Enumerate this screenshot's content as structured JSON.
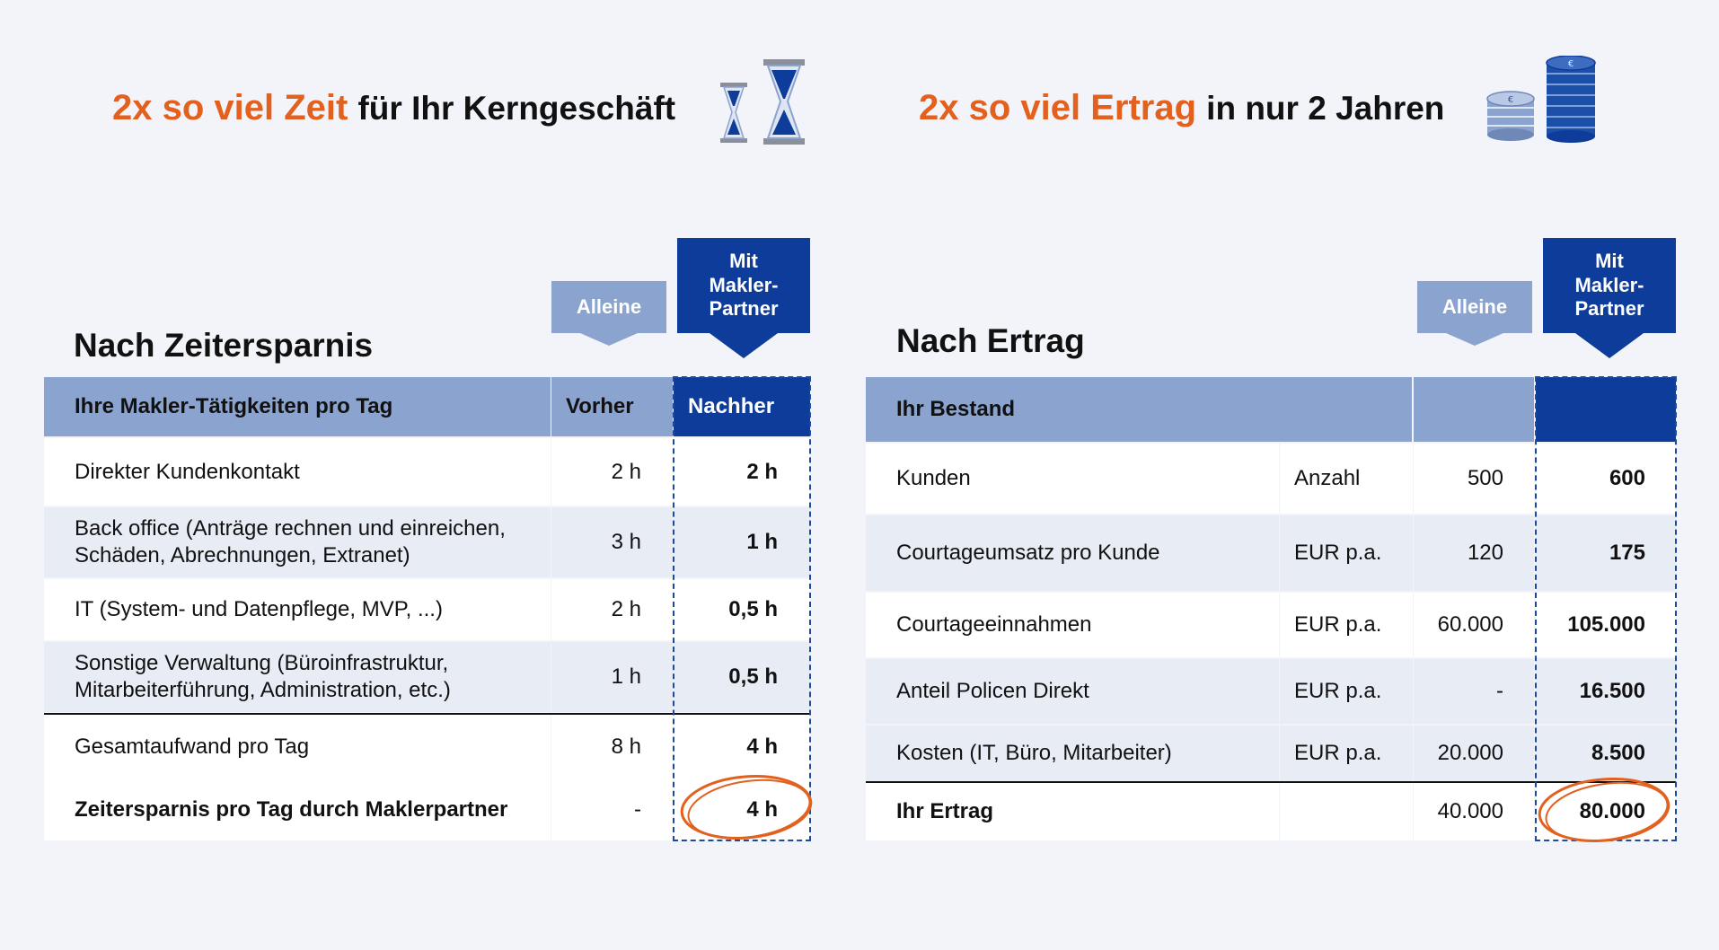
{
  "left": {
    "headline_accent": "2x so viel Zeit",
    "headline_rest": "für Ihr Kerngeschäft",
    "icon": "hourglass-icon",
    "section_title": "Nach Zeitersparnis",
    "tag_alone": "Alleine",
    "tag_partner": "Mit Makler-Partner",
    "table": {
      "headers": [
        "Ihre Makler-Tätigkeiten pro Tag",
        "Vorher",
        "Nachher"
      ],
      "rows": [
        {
          "label": "Direkter Kundenkontakt",
          "before": "2 h",
          "after": "2 h"
        },
        {
          "label": "Back office (Anträge rechnen und einreichen, Schäden, Abrechnungen, Extranet)",
          "before": "3 h",
          "after": "1 h"
        },
        {
          "label": "IT (System- und Datenpflege, MVP, ...)",
          "before": "2 h",
          "after": "0,5 h"
        },
        {
          "label": "Sonstige Verwaltung (Büroinfrastruktur, Mitarbeiterführung, Administration, etc.)",
          "before": "1 h",
          "after": "0,5 h"
        }
      ],
      "total": {
        "label": "Gesamtaufwand pro Tag",
        "before": "8 h",
        "after": "4 h"
      },
      "savings": {
        "label": "Zeitersparnis pro Tag durch Maklerpartner",
        "before": "-",
        "after": "4 h"
      }
    }
  },
  "right": {
    "headline_accent": "2x so viel Ertrag",
    "headline_rest": "in nur 2 Jahren",
    "icon": "coins-icon",
    "section_title": "Nach Ertrag",
    "tag_alone": "Alleine",
    "tag_partner": "Mit Makler-Partner",
    "table": {
      "header": "Ihr Bestand",
      "rows": [
        {
          "label": "Kunden",
          "unit": "Anzahl",
          "before": "500",
          "after": "600"
        },
        {
          "label": "Courtageumsatz pro Kunde",
          "unit": "EUR p.a.",
          "before": "120",
          "after": "175"
        },
        {
          "label": "Courtageeinnahmen",
          "unit": "EUR p.a.",
          "before": "60.000",
          "after": "105.000"
        },
        {
          "label": "Anteil Policen Direkt",
          "unit": "EUR p.a.",
          "before": "-",
          "after": "16.500"
        },
        {
          "label": "Kosten (IT, Büro, Mitarbeiter)",
          "unit": "EUR p.a.",
          "before": "20.000",
          "after": "8.500"
        }
      ],
      "total": {
        "label": "Ihr Ertrag",
        "before": "40.000",
        "after": "80.000"
      }
    }
  },
  "colors": {
    "accent": "#e3611f",
    "header_light": "#8ba3cf",
    "header_dark": "#0d3c9a",
    "row_alt": "#e8ecf5"
  }
}
